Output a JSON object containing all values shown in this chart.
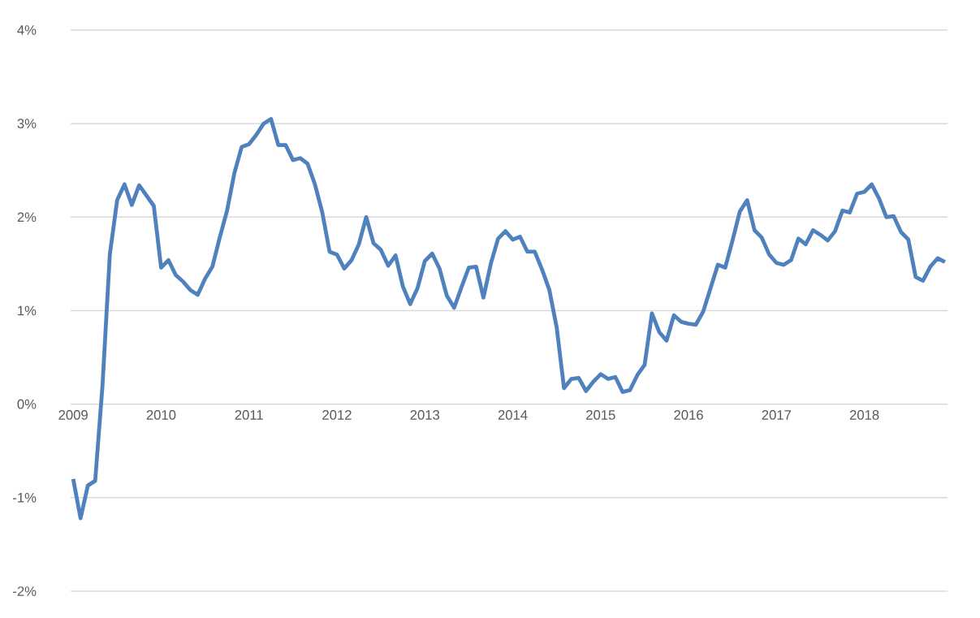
{
  "chart_data": {
    "type": "line",
    "color": "#4f81bd",
    "categories": [
      "2009",
      null,
      null,
      null,
      null,
      null,
      null,
      null,
      null,
      null,
      null,
      null,
      "2010",
      null,
      null,
      null,
      null,
      null,
      null,
      null,
      null,
      null,
      null,
      null,
      "2011",
      null,
      null,
      null,
      null,
      null,
      null,
      null,
      null,
      null,
      null,
      null,
      "2012",
      null,
      null,
      null,
      null,
      null,
      null,
      null,
      null,
      null,
      null,
      null,
      "2013",
      null,
      null,
      null,
      null,
      null,
      null,
      null,
      null,
      null,
      null,
      null,
      "2014",
      null,
      null,
      null,
      null,
      null,
      null,
      null,
      null,
      null,
      null,
      null,
      "2015",
      null,
      null,
      null,
      null,
      null,
      null,
      null,
      null,
      null,
      null,
      null,
      "2016",
      null,
      null,
      null,
      null,
      null,
      null,
      null,
      null,
      null,
      null,
      null,
      "2017",
      null,
      null,
      null,
      null,
      null,
      null,
      null,
      null,
      null,
      null,
      null,
      "2018",
      null,
      null,
      null,
      null,
      null,
      null,
      null,
      null,
      null,
      null,
      null
    ],
    "values": [
      -0.8,
      -1.22,
      -0.87,
      -0.82,
      0.2,
      1.6,
      2.18,
      2.35,
      2.13,
      2.34,
      2.23,
      2.12,
      1.46,
      1.54,
      1.38,
      1.31,
      1.22,
      1.17,
      1.34,
      1.47,
      1.78,
      2.07,
      2.47,
      2.75,
      2.78,
      2.88,
      3.0,
      3.05,
      2.77,
      2.77,
      2.61,
      2.63,
      2.57,
      2.35,
      2.05,
      1.63,
      1.6,
      1.45,
      1.54,
      1.71,
      2.0,
      1.72,
      1.65,
      1.48,
      1.59,
      1.26,
      1.07,
      1.24,
      1.53,
      1.61,
      1.45,
      1.16,
      1.03,
      1.25,
      1.46,
      1.47,
      1.14,
      1.5,
      1.77,
      1.85,
      1.76,
      1.79,
      1.63,
      1.63,
      1.44,
      1.22,
      0.82,
      0.17,
      0.27,
      0.28,
      0.14,
      0.24,
      0.32,
      0.27,
      0.29,
      0.13,
      0.15,
      0.31,
      0.42,
      0.97,
      0.77,
      0.68,
      0.95,
      0.88,
      0.86,
      0.85,
      0.99,
      1.24,
      1.49,
      1.46,
      1.75,
      2.06,
      2.18,
      1.86,
      1.78,
      1.6,
      1.51,
      1.49,
      1.54,
      1.77,
      1.71,
      1.86,
      1.81,
      1.75,
      1.85,
      2.07,
      2.05,
      2.25,
      2.27,
      2.35,
      2.2,
      2.0,
      2.01,
      1.84,
      1.76,
      1.36,
      1.32,
      1.47,
      1.56,
      1.52
    ],
    "ylim": [
      -2,
      4
    ],
    "yticks": [
      {
        "value": -2,
        "label": "-2%"
      },
      {
        "value": -1,
        "label": "-1%"
      },
      {
        "value": 0,
        "label": "0%"
      },
      {
        "value": 1,
        "label": "1%"
      },
      {
        "value": 2,
        "label": "2%"
      },
      {
        "value": 3,
        "label": "3%"
      },
      {
        "value": 4,
        "label": "4%"
      }
    ],
    "grid": "y",
    "marker": "none",
    "line_style": "solid"
  }
}
